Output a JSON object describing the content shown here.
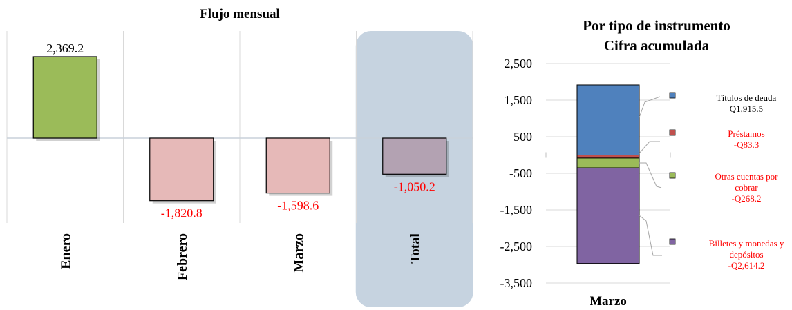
{
  "chart_data": [
    {
      "type": "bar",
      "title": "Flujo mensual",
      "categories": [
        "Enero",
        "Febrero",
        "Marzo",
        "Total"
      ],
      "values": [
        2369.2,
        -1820.8,
        -1598.6,
        -1050.2
      ],
      "value_labels": [
        "2,369.2",
        "-1,820.8",
        "-1,598.6",
        "-1,050.2"
      ],
      "highlighted_category": "Total",
      "grid": false,
      "colors": {
        "positive": "#9bbb59",
        "negative": "#e6b9b8",
        "total": "#b3a2b2",
        "highlight_band": "#c6d3e0",
        "negative_label": "#ff0000",
        "positive_label": "#000000"
      }
    },
    {
      "type": "bar",
      "stacked": true,
      "title": [
        "Por tipo de instrumento",
        "Cifra acumulada"
      ],
      "categories": [
        "Marzo"
      ],
      "ylim": [
        -3500,
        2500
      ],
      "yticks": [
        2500,
        1500,
        500,
        -500,
        -1500,
        -2500,
        -3500
      ],
      "ytick_labels": [
        "2,500",
        "1,500",
        "500",
        "-500",
        "-1,500",
        "-2,500",
        "-3,500"
      ],
      "grid": true,
      "series": [
        {
          "name": "Títulos de deuda",
          "value": 1915.5,
          "label": "Q1,915.5",
          "color": "#4f81bd",
          "text_color": "#000000"
        },
        {
          "name": "Préstamos",
          "value": -83.3,
          "label": "-Q83.3",
          "color": "#c0504d",
          "text_color": "#ff0000"
        },
        {
          "name": "Otras cuentas por cobrar",
          "value": -268.2,
          "label": "-Q268.2",
          "color": "#9bbb59",
          "text_color": "#ff0000"
        },
        {
          "name": "Billetes y monedas y depósitos",
          "value": -2614.2,
          "label": "-Q2,614.2",
          "color": "#8064a2",
          "text_color": "#ff0000"
        }
      ]
    }
  ]
}
